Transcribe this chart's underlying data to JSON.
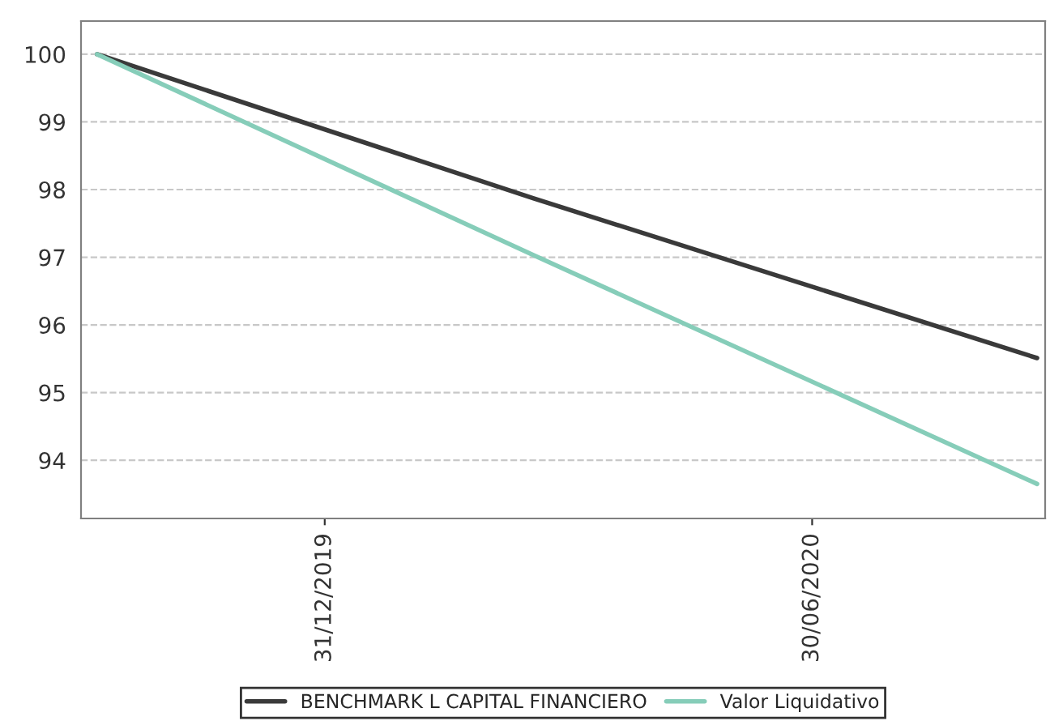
{
  "chart_data": {
    "type": "line",
    "series": [
      {
        "name": "BENCHMARK L CAPITAL FINANCIERO",
        "color": "#3a3a3a",
        "x": [
          "2019-10-07",
          "2020-03-18",
          "2020-09-22"
        ],
        "values": [
          100,
          97.87,
          95.51
        ]
      },
      {
        "name": "Valor Liquidativo",
        "color": "#86cdb9",
        "x": [
          "2019-10-07",
          "2020-03-18",
          "2020-09-22"
        ],
        "values": [
          100,
          97.03,
          93.65
        ]
      }
    ],
    "xlim": [
      "2019-10-01",
      "2020-09-25"
    ],
    "xticks": [
      {
        "value": "2019-12-31",
        "label": "31/12/2019"
      },
      {
        "value": "2020-06-30",
        "label": "30/06/2020"
      }
    ],
    "ylim": [
      93.14,
      100.49
    ],
    "yticks": [
      94,
      95,
      96,
      97,
      98,
      99,
      100
    ],
    "grid": "y",
    "legend": "bottom",
    "marker": "none",
    "line_style": "solid"
  }
}
